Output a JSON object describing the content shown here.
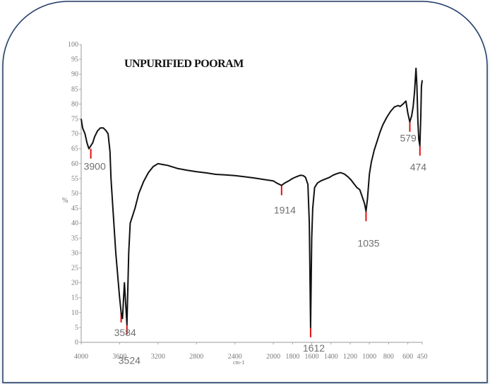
{
  "chart_data": {
    "type": "line",
    "title": "UNPURIFIED POORAM",
    "ylabel": "%",
    "xlabel": "cm-1",
    "x_reversed": true,
    "xlim": [
      4000,
      450
    ],
    "ylim": [
      0,
      100
    ],
    "x_ticks": [
      {
        "v": 4000,
        "label": "4000"
      },
      {
        "v": 3600,
        "label": "3600"
      },
      {
        "v": 3200,
        "label": "3200"
      },
      {
        "v": 2800,
        "label": "2800"
      },
      {
        "v": 2400,
        "label": "2400"
      },
      {
        "v": 2000,
        "label": "2000"
      },
      {
        "v": 1800,
        "label": "1800"
      },
      {
        "v": 1600,
        "label": "1600"
      },
      {
        "v": 1400,
        "label": "1400"
      },
      {
        "v": 1200,
        "label": "1200"
      },
      {
        "v": 1000,
        "label": "1000"
      },
      {
        "v": 800,
        "label": "800"
      },
      {
        "v": 600,
        "label": "600"
      },
      {
        "v": 450,
        "label": "450"
      }
    ],
    "y_ticks": [
      {
        "v": 0,
        "label": "0"
      },
      {
        "v": 5,
        "label": "5"
      },
      {
        "v": 10,
        "label": "10"
      },
      {
        "v": 15,
        "label": "15"
      },
      {
        "v": 20,
        "label": "20"
      },
      {
        "v": 25,
        "label": "25"
      },
      {
        "v": 30,
        "label": "30"
      },
      {
        "v": 35,
        "label": "35"
      },
      {
        "v": 40,
        "label": "40"
      },
      {
        "v": 45,
        "label": "45"
      },
      {
        "v": 50,
        "label": "50"
      },
      {
        "v": 55,
        "label": "55"
      },
      {
        "v": 60,
        "label": "60"
      },
      {
        "v": 65,
        "label": "65"
      },
      {
        "v": 70,
        "label": "70"
      },
      {
        "v": 75,
        "label": "75"
      },
      {
        "v": 80,
        "label": "80"
      },
      {
        "v": 85,
        "label": "85"
      },
      {
        "v": 90,
        "label": "90"
      },
      {
        "v": 95,
        "label": "95"
      },
      {
        "v": 100,
        "label": "100"
      }
    ],
    "series": [
      {
        "color": "#111111",
        "x": [
          4000,
          3985,
          3960,
          3940,
          3920,
          3900,
          3880,
          3860,
          3830,
          3800,
          3770,
          3740,
          3720,
          3700,
          3690,
          3670,
          3640,
          3600,
          3584,
          3570,
          3550,
          3524,
          3505,
          3490,
          3470,
          3440,
          3400,
          3350,
          3300,
          3250,
          3200,
          3150,
          3100,
          3000,
          2900,
          2800,
          2700,
          2600,
          2500,
          2400,
          2300,
          2200,
          2100,
          2000,
          1960,
          1914,
          1880,
          1840,
          1800,
          1760,
          1720,
          1690,
          1665,
          1640,
          1625,
          1612,
          1600,
          1590,
          1570,
          1540,
          1500,
          1460,
          1420,
          1380,
          1340,
          1300,
          1260,
          1220,
          1190,
          1160,
          1130,
          1100,
          1070,
          1050,
          1035,
          1020,
          1000,
          980,
          950,
          920,
          890,
          860,
          820,
          780,
          740,
          700,
          680,
          650,
          620,
          600,
          579,
          560,
          545,
          530,
          515,
          505,
          495,
          485,
          474,
          465,
          458,
          450
        ],
        "y": [
          75,
          72,
          70,
          67,
          65,
          66,
          67,
          69,
          71,
          72,
          72,
          71,
          70,
          64,
          55,
          45,
          30,
          15,
          10,
          8,
          20,
          6,
          30,
          40,
          42,
          45,
          50,
          54,
          57,
          59,
          60,
          59.7,
          59.4,
          58.4,
          57.8,
          57.3,
          56.9,
          56.4,
          56.2,
          56,
          55.6,
          55.2,
          54.7,
          54.2,
          53.4,
          52.7,
          53.5,
          54.2,
          55,
          55.6,
          56.1,
          56,
          55.4,
          53,
          40,
          5,
          35,
          45,
          52,
          53.5,
          54.3,
          54.8,
          55.3,
          56.1,
          56.6,
          57,
          56.5,
          55.5,
          54.5,
          53.2,
          52,
          51.2,
          48.5,
          46.5,
          44,
          48,
          56.5,
          60.5,
          64.5,
          67.5,
          70.5,
          73,
          75.5,
          77.5,
          79,
          79.5,
          79.2,
          80,
          81,
          77,
          74,
          76,
          79,
          84,
          92,
          86,
          74,
          68,
          66,
          76,
          86,
          88
        ]
      }
    ],
    "peaks": [
      {
        "x": 3900,
        "y": 65,
        "label": "3900"
      },
      {
        "x": 3584,
        "y": 10,
        "label": "3584"
      },
      {
        "x": 3524,
        "y": 6,
        "label": "3524"
      },
      {
        "x": 1914,
        "y": 52.7,
        "label": "1914"
      },
      {
        "x": 1612,
        "y": 5,
        "label": "1612"
      },
      {
        "x": 1035,
        "y": 44,
        "label": "1035"
      },
      {
        "x": 579,
        "y": 74,
        "label": "579"
      },
      {
        "x": 474,
        "y": 66,
        "label": "474"
      }
    ]
  }
}
